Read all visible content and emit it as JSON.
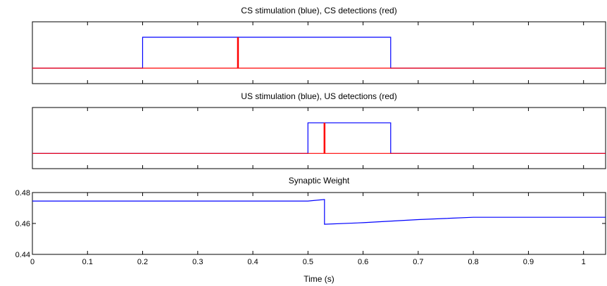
{
  "chart_data": [
    {
      "type": "line",
      "title": "CS stimulation (blue), CS detections (red)",
      "xlim": [
        0,
        1.04
      ],
      "ylim": [
        -0.5,
        1.5
      ],
      "x_ticks": [
        0,
        0.1,
        0.2,
        0.3,
        0.4,
        0.5,
        0.6,
        0.7,
        0.8,
        0.9,
        1
      ],
      "y_ticks": [],
      "series": [
        {
          "color": "#0000ff",
          "points": [
            [
              0,
              0
            ],
            [
              0.2,
              0
            ],
            [
              0.2,
              1
            ],
            [
              0.65,
              1
            ],
            [
              0.65,
              0
            ],
            [
              1.04,
              0
            ]
          ]
        },
        {
          "color": "#ff0000",
          "points": [
            [
              0,
              0
            ],
            [
              1.04,
              0
            ]
          ],
          "spikes": [
            0.373
          ]
        }
      ]
    },
    {
      "type": "line",
      "title": "US stimulation (blue), US detections (red)",
      "xlim": [
        0,
        1.04
      ],
      "ylim": [
        -0.5,
        1.5
      ],
      "x_ticks": [
        0,
        0.1,
        0.2,
        0.3,
        0.4,
        0.5,
        0.6,
        0.7,
        0.8,
        0.9,
        1
      ],
      "y_ticks": [],
      "series": [
        {
          "color": "#0000ff",
          "points": [
            [
              0,
              0
            ],
            [
              0.5,
              0
            ],
            [
              0.5,
              1
            ],
            [
              0.65,
              1
            ],
            [
              0.65,
              0
            ],
            [
              1.04,
              0
            ]
          ]
        },
        {
          "color": "#ff0000",
          "points": [
            [
              0,
              0
            ],
            [
              1.04,
              0
            ]
          ],
          "spikes": [
            0.53
          ]
        }
      ]
    },
    {
      "type": "line",
      "title": "Synaptic Weight",
      "xlabel": "Time (s)",
      "xlim": [
        0,
        1.04
      ],
      "ylim": [
        0.44,
        0.48
      ],
      "x_ticks": [
        0,
        0.1,
        0.2,
        0.3,
        0.4,
        0.5,
        0.6,
        0.7,
        0.8,
        0.9,
        1
      ],
      "y_ticks": [
        0.44,
        0.46,
        0.48
      ],
      "series": [
        {
          "color": "#0000ff",
          "points": [
            [
              0,
              0.4745
            ],
            [
              0.5,
              0.4745
            ],
            [
              0.53,
              0.4755
            ],
            [
              0.53,
              0.4595
            ],
            [
              0.6,
              0.4605
            ],
            [
              0.7,
              0.4625
            ],
            [
              0.8,
              0.464
            ],
            [
              0.9,
              0.464
            ],
            [
              1.04,
              0.464
            ]
          ]
        }
      ]
    }
  ]
}
